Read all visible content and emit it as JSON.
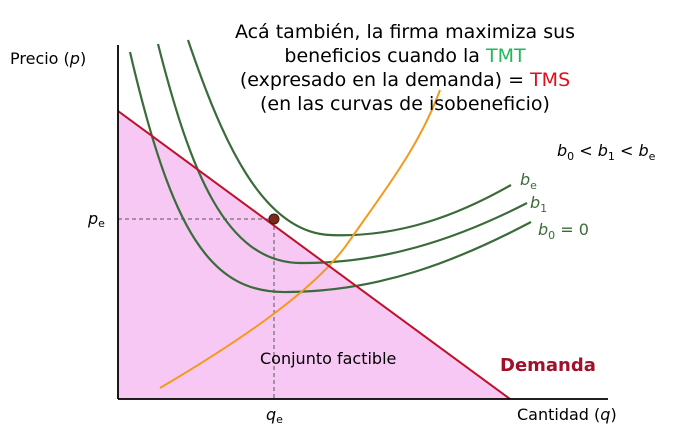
{
  "title": {
    "line1": "Acá también, la firma maximiza sus",
    "line2_pre": "beneficios cuando la ",
    "line2_tmt": "TMT",
    "line3_pre": "(expresado en la demanda) = ",
    "line3_tms": "TMS",
    "line4": "(en las curvas de isobeneficio)"
  },
  "axes": {
    "y_label_pre": "Precio (",
    "y_label_var": "p",
    "y_label_post": ")",
    "x_label_pre": "Cantidad (",
    "x_label_var": "q",
    "x_label_post": ")"
  },
  "equilibrium": {
    "p_main": "p",
    "p_sub": "e",
    "q_main": "q",
    "q_sub": "e"
  },
  "relation": {
    "b0_main": "b",
    "b0_sub": "0",
    "lt1": " < ",
    "b1_main": "b",
    "b1_sub": "1",
    "lt2": " < ",
    "be_main": "b",
    "be_sub": "e"
  },
  "curve_labels": {
    "be_main": "b",
    "be_sub": "e",
    "b1_main": "b",
    "b1_sub": "1",
    "b0_main": "b",
    "b0_sub": "0",
    "b0_eq": " = 0"
  },
  "region_label": "Conjunto factible",
  "demand_label": "Demanda",
  "colors": {
    "demand_line": "#c0102a",
    "demand_text": "#a0102a",
    "isoprofit": "#3a6b3a",
    "marginal": "#f39a1a",
    "feasible_fill": "#f7c8f3",
    "tmt": "#1fb85a",
    "tms": "#e0101a",
    "point": "#7a2a1a"
  }
}
